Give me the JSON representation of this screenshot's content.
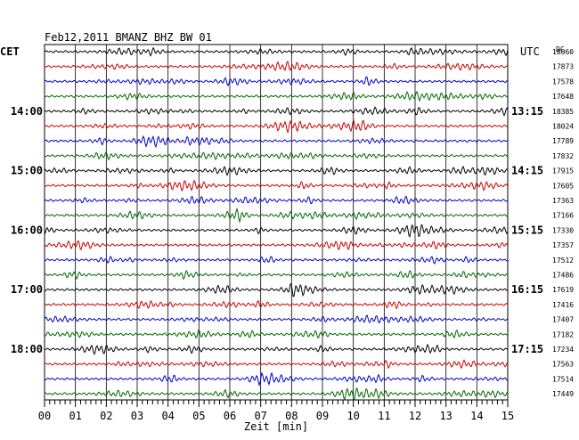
{
  "chart_data": {
    "type": "line",
    "title": "Feb12,2011   BMANZ BHZ BW 01",
    "xlabel": "Zeit [min]",
    "left_timezone": "CET",
    "right_timezone": "UTC",
    "right_column_header": "DC",
    "x_ticks": [
      "00",
      "01",
      "02",
      "03",
      "04",
      "05",
      "06",
      "07",
      "08",
      "09",
      "10",
      "11",
      "12",
      "13",
      "14",
      "15"
    ],
    "xlim": [
      0,
      15
    ],
    "grid": true,
    "trace_colors": [
      "#000000",
      "#cc0000",
      "#0000cc",
      "#006600"
    ],
    "traces": [
      {
        "left_label": "",
        "right_label": "",
        "dc": "18060"
      },
      {
        "left_label": "",
        "right_label": "",
        "dc": "17873"
      },
      {
        "left_label": "",
        "right_label": "",
        "dc": "17578"
      },
      {
        "left_label": "",
        "right_label": "",
        "dc": "17648"
      },
      {
        "left_label": "14:00",
        "right_label": "13:15",
        "dc": "18385"
      },
      {
        "left_label": "",
        "right_label": "",
        "dc": "18024"
      },
      {
        "left_label": "",
        "right_label": "",
        "dc": "17789"
      },
      {
        "left_label": "",
        "right_label": "",
        "dc": "17832"
      },
      {
        "left_label": "15:00",
        "right_label": "14:15",
        "dc": "17915"
      },
      {
        "left_label": "",
        "right_label": "",
        "dc": "17605"
      },
      {
        "left_label": "",
        "right_label": "",
        "dc": "17363"
      },
      {
        "left_label": "",
        "right_label": "",
        "dc": "17166"
      },
      {
        "left_label": "16:00",
        "right_label": "15:15",
        "dc": "17330"
      },
      {
        "left_label": "",
        "right_label": "",
        "dc": "17357"
      },
      {
        "left_label": "",
        "right_label": "",
        "dc": "17512"
      },
      {
        "left_label": "",
        "right_label": "",
        "dc": "17486"
      },
      {
        "left_label": "17:00",
        "right_label": "16:15",
        "dc": "17619"
      },
      {
        "left_label": "",
        "right_label": "",
        "dc": "17416"
      },
      {
        "left_label": "",
        "right_label": "",
        "dc": "17407"
      },
      {
        "left_label": "",
        "right_label": "",
        "dc": "17182"
      },
      {
        "left_label": "18:00",
        "right_label": "17:15",
        "dc": "17234"
      },
      {
        "left_label": "",
        "right_label": "",
        "dc": "17563"
      },
      {
        "left_label": "",
        "right_label": "",
        "dc": "17514"
      },
      {
        "left_label": "",
        "right_label": "",
        "dc": "17449"
      }
    ]
  }
}
